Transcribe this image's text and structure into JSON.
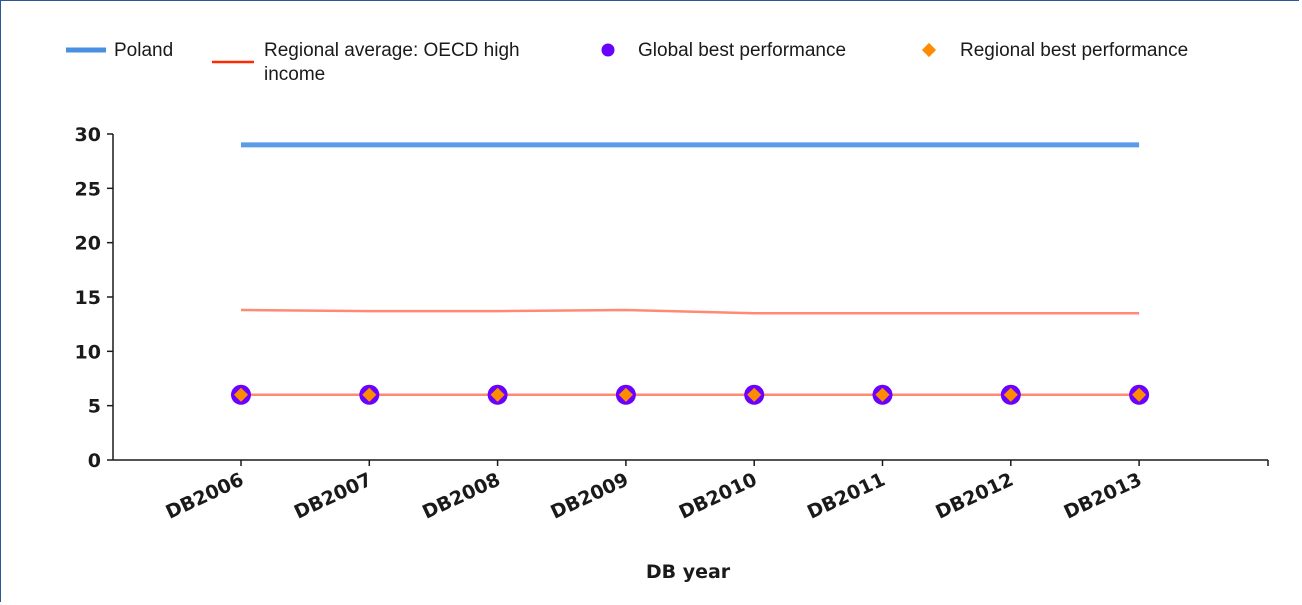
{
  "chart_data": {
    "type": "line",
    "title": "",
    "xlabel": "DB year",
    "ylabel": "",
    "ylim": [
      0,
      30
    ],
    "yticks": [
      "0",
      "5",
      "10",
      "15",
      "20",
      "25",
      "30"
    ],
    "categories": [
      "DB2006",
      "DB2007",
      "DB2008",
      "DB2009",
      "DB2010",
      "DB2011",
      "DB2012",
      "DB2013"
    ],
    "series": [
      {
        "name": "Poland",
        "values": [
          29,
          29,
          29,
          29,
          29,
          29,
          29,
          29
        ],
        "color": "#4a90e2",
        "style": "line-thick"
      },
      {
        "name": "Regional average: OECD high income",
        "values": [
          13.8,
          13.7,
          13.7,
          13.8,
          13.5,
          13.5,
          13.5,
          13.5
        ],
        "color": "#ff2a00",
        "style": "line-thin"
      },
      {
        "name": "Global best performance",
        "values": [
          6,
          6,
          6,
          6,
          6,
          6,
          6,
          6
        ],
        "color": "#6a00ff",
        "style": "circle"
      },
      {
        "name": "Regional best performance",
        "values": [
          6,
          6,
          6,
          6,
          6,
          6,
          6,
          6
        ],
        "color": "#ff8c00",
        "style": "diamond"
      }
    ],
    "grid": false,
    "legend_position": "top"
  },
  "legend": {
    "poland": "Poland",
    "regional_avg_line1": "Regional average: OECD high",
    "regional_avg_line2": "income",
    "global_best": "Global best performance",
    "regional_best": "Regional best performance"
  }
}
